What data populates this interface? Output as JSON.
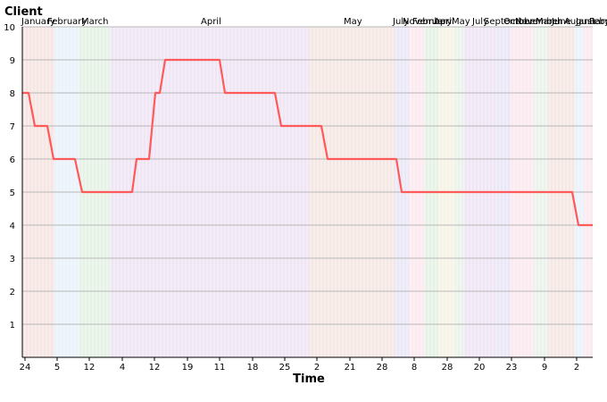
{
  "chart_data": {
    "type": "line",
    "ylabel": "Client",
    "xlabel": "Time",
    "ylim": [
      0,
      10
    ],
    "y_ticks": [
      1,
      2,
      3,
      4,
      5,
      6,
      7,
      8,
      9,
      10
    ],
    "grid": "horizontal",
    "line_color": "#ff5a5a",
    "x_tick_labels": [
      "24",
      "5",
      "12",
      "4",
      "12",
      "19",
      "11",
      "18",
      "25",
      "2",
      "21",
      "28",
      "8",
      "28",
      "20",
      "23",
      "9",
      "2"
    ],
    "month_labels": [
      "January",
      "February",
      "March",
      "April",
      "May",
      "July",
      "November",
      "February",
      "April",
      "May",
      "July",
      "September",
      "October",
      "November",
      "March",
      "June",
      "August",
      "January",
      "February"
    ],
    "band_colors": [
      "#f5e6e3",
      "#eaf2fb",
      "#e6f2e6",
      "#efe6f5",
      "#f5e8e4",
      "#eae8f7",
      "#fbeaf0",
      "#f6f4e6",
      "#eaf2eb"
    ],
    "series": [
      {
        "x": [
          0,
          1,
          2,
          3,
          4,
          5,
          6,
          7,
          8,
          9,
          10,
          11,
          12,
          13,
          14,
          15,
          16,
          17,
          18,
          19,
          20,
          21
        ],
        "values": [
          8,
          7,
          6,
          5,
          6,
          8,
          9,
          8,
          7,
          6,
          5,
          5,
          4,
          4,
          4,
          4,
          4,
          4,
          4,
          4,
          4,
          4
        ]
      }
    ]
  }
}
